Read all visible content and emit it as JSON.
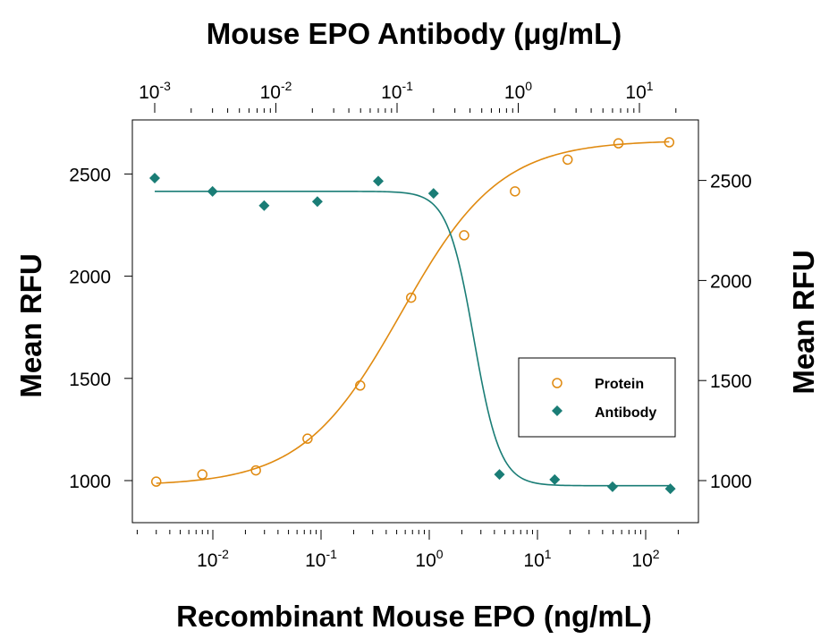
{
  "chart_data": {
    "type": "scatter",
    "title": "Mouse EPO Antibody (μg/mL)",
    "xlabel": "Recombinant Mouse EPO (ng/mL)",
    "ylabel": "Mean RFU",
    "ylabel_right": "Mean RFU",
    "x_scale": "log",
    "x_bottom_ticks": [
      {
        "base": "10",
        "exp": "-2",
        "value": 0.01
      },
      {
        "base": "10",
        "exp": "-1",
        "value": 0.1
      },
      {
        "base": "10",
        "exp": "0",
        "value": 1
      },
      {
        "base": "10",
        "exp": "1",
        "value": 10
      },
      {
        "base": "10",
        "exp": "2",
        "value": 100
      }
    ],
    "x_top_ticks": [
      {
        "base": "10",
        "exp": "-3",
        "value": 0.001
      },
      {
        "base": "10",
        "exp": "-2",
        "value": 0.01
      },
      {
        "base": "10",
        "exp": "-1",
        "value": 0.1
      },
      {
        "base": "10",
        "exp": "0",
        "value": 1
      },
      {
        "base": "10",
        "exp": "1",
        "value": 10
      }
    ],
    "ylim": [
      800,
      2700
    ],
    "y_ticks": [
      "1000",
      "1500",
      "2000",
      "2500"
    ],
    "legend_position": "center-right",
    "series": [
      {
        "name": "Protein",
        "axis": "bottom",
        "marker": "open-circle",
        "color": "#E08A10",
        "x": [
          0.003,
          0.008,
          0.025,
          0.075,
          0.23,
          0.68,
          2.1,
          6.2,
          19,
          56,
          165
        ],
        "y": [
          995,
          1030,
          1050,
          1205,
          1465,
          1895,
          2200,
          2415,
          2570,
          2650,
          2655
        ]
      },
      {
        "name": "Antibody",
        "axis": "top",
        "marker": "filled-diamond",
        "color": "#1A7D76",
        "x": [
          0.001,
          0.003,
          0.008,
          0.022,
          0.07,
          0.2,
          0.7,
          2,
          6,
          18
        ],
        "y": [
          2480,
          2415,
          2345,
          2365,
          2465,
          2405,
          1030,
          1005,
          970,
          960
        ]
      }
    ],
    "fit_curves": [
      {
        "series": "Protein",
        "axis": "bottom",
        "bottom": 975,
        "top": 2665,
        "ec50": 0.55,
        "hill": 0.95
      },
      {
        "series": "Antibody",
        "axis": "top",
        "bottom": 975,
        "top": 2415,
        "ic50": 0.43,
        "hill": 4.0
      }
    ]
  }
}
